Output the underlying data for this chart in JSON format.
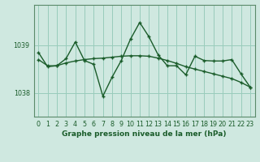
{
  "title": "Graphe pression niveau de la mer (hPa)",
  "bg_color": "#cfe8e0",
  "grid_color": "#99ccbb",
  "line_color": "#1a5c2a",
  "spine_color": "#5a8a6a",
  "x_min": -0.5,
  "x_max": 23.5,
  "y_min": 1037.5,
  "y_max": 1039.85,
  "yticks": [
    1038,
    1039
  ],
  "xticks": [
    0,
    1,
    2,
    3,
    4,
    5,
    6,
    7,
    8,
    9,
    10,
    11,
    12,
    13,
    14,
    15,
    16,
    17,
    18,
    19,
    20,
    21,
    22,
    23
  ],
  "line1_x": [
    0,
    1,
    2,
    3,
    4,
    5,
    6,
    7,
    8,
    9,
    10,
    11,
    12,
    13,
    14,
    15,
    16,
    17,
    18,
    19,
    20,
    21,
    22,
    23
  ],
  "line1_y": [
    1038.85,
    1038.55,
    1038.57,
    1038.72,
    1039.07,
    1038.68,
    1038.6,
    1037.93,
    1038.33,
    1038.68,
    1039.13,
    1039.48,
    1039.18,
    1038.8,
    1038.57,
    1038.57,
    1038.38,
    1038.77,
    1038.68,
    1038.67,
    1038.67,
    1038.7,
    1038.4,
    1038.12
  ],
  "line2_x": [
    0,
    1,
    2,
    3,
    4,
    5,
    6,
    7,
    8,
    9,
    10,
    11,
    12,
    13,
    14,
    15,
    16,
    17,
    18,
    19,
    20,
    21,
    22,
    23
  ],
  "line2_y": [
    1038.7,
    1038.57,
    1038.57,
    1038.63,
    1038.67,
    1038.7,
    1038.72,
    1038.73,
    1038.75,
    1038.77,
    1038.78,
    1038.78,
    1038.77,
    1038.73,
    1038.68,
    1038.62,
    1038.55,
    1038.5,
    1038.45,
    1038.4,
    1038.35,
    1038.3,
    1038.22,
    1038.12
  ],
  "figsize": [
    3.2,
    2.0
  ],
  "dpi": 100,
  "xlabel_fontsize": 6.5,
  "tick_fontsize": 5.8,
  "linewidth": 1.0,
  "markersize": 3.5
}
